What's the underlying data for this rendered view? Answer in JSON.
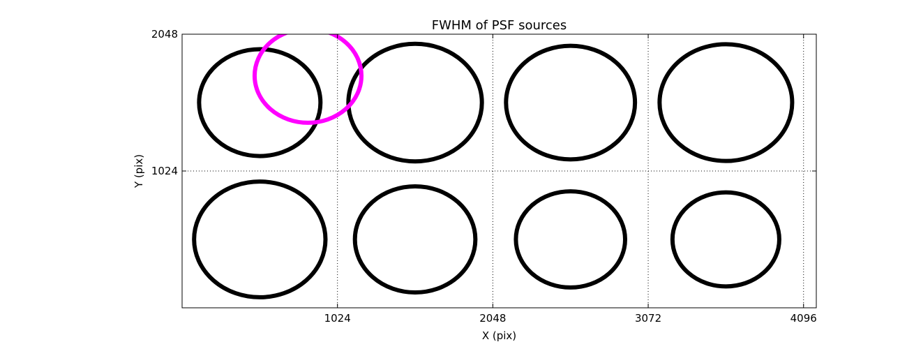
{
  "chart_data": {
    "type": "scatter",
    "title": "FWHM of PSF sources",
    "xlabel": "X (pix)",
    "ylabel": "Y (pix)",
    "xlim": [
      0,
      4180
    ],
    "ylim": [
      0,
      2048
    ],
    "xticks": [
      1024,
      2048,
      3072,
      4096
    ],
    "yticks": [
      1024,
      2048
    ],
    "xtick_labels": [
      "1024",
      "2048",
      "3072",
      "4096"
    ],
    "ytick_labels": [
      "1024",
      "2048"
    ],
    "grid": true,
    "marker_style": "open-circle",
    "marker_size_meaning": "FWHM",
    "series": [
      {
        "color": "#000000",
        "points": [
          {
            "x": 512,
            "y": 1536,
            "r": 400
          },
          {
            "x": 1536,
            "y": 1536,
            "r": 440
          },
          {
            "x": 2560,
            "y": 1536,
            "r": 425
          },
          {
            "x": 3584,
            "y": 1536,
            "r": 437
          },
          {
            "x": 512,
            "y": 512,
            "r": 433
          },
          {
            "x": 1536,
            "y": 512,
            "r": 397
          },
          {
            "x": 2560,
            "y": 512,
            "r": 360
          },
          {
            "x": 3584,
            "y": 512,
            "r": 352
          }
        ]
      },
      {
        "color": "#ff00ff",
        "points": [
          {
            "x": 830,
            "y": 1737,
            "r": 352
          }
        ]
      }
    ]
  }
}
